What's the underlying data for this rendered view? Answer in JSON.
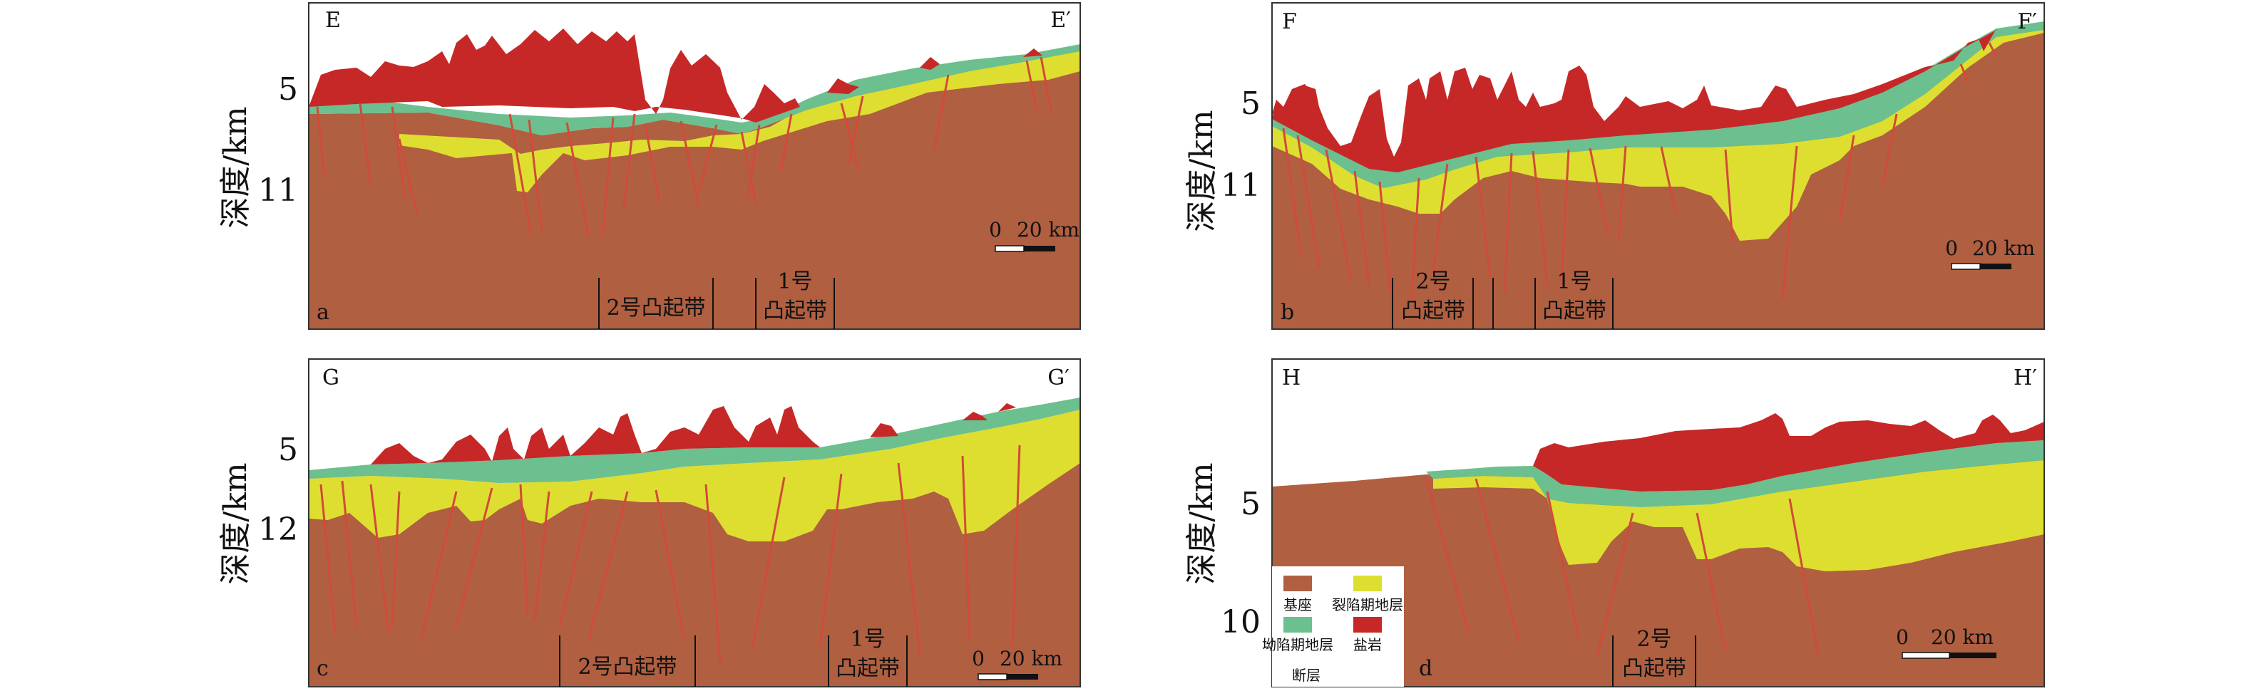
{
  "y_axis_label": "深度/km",
  "colors": {
    "basement": "#b05f41",
    "rift": "#dede30",
    "sag": "#6cbf8e",
    "salt": "#c62828",
    "fault": "#d24a3a"
  },
  "panels": [
    {
      "id": "a",
      "label_start": "E",
      "label_end": "E′",
      "ticks": [
        "5",
        "11"
      ],
      "scale": {
        "zero": "0",
        "length": "20 km"
      },
      "zones": [
        {
          "text_line1": "2号凸起带",
          "text_line2": ""
        },
        {
          "text_line1": "1号",
          "text_line2": "凸起带"
        }
      ]
    },
    {
      "id": "b",
      "label_start": "F",
      "label_end": "F′",
      "ticks": [
        "5",
        "11"
      ],
      "scale": {
        "zero": "0",
        "length": "20 km"
      },
      "zones": [
        {
          "text_line1": "2号",
          "text_line2": "凸起带"
        },
        {
          "text_line1": "1号",
          "text_line2": "凸起带"
        }
      ]
    },
    {
      "id": "c",
      "label_start": "G",
      "label_end": "G′",
      "ticks": [
        "5",
        "12"
      ],
      "scale": {
        "zero": "0",
        "length": "20 km"
      },
      "zones": [
        {
          "text_line1": "2号凸起带",
          "text_line2": ""
        },
        {
          "text_line1": "1号",
          "text_line2": "凸起带"
        }
      ]
    },
    {
      "id": "d",
      "label_start": "H",
      "label_end": "H′",
      "ticks": [
        "5",
        "10"
      ],
      "scale": {
        "zero": "0",
        "length": "20 km"
      },
      "zones": [
        {
          "text_line1": "2号",
          "text_line2": "凸起带"
        }
      ]
    }
  ],
  "legend": {
    "basement": "基座",
    "rift": "裂陷期地层",
    "sag": "坳陷期地层",
    "salt": "盐岩",
    "fault": "断层"
  }
}
